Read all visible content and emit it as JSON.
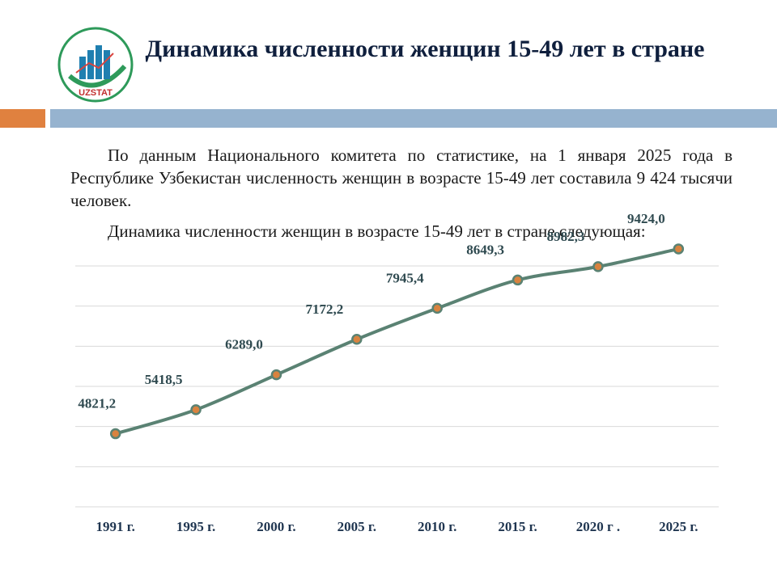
{
  "logo": {
    "text": "UZSTAT"
  },
  "title": "Динамика численности женщин 15-49 лет в стране",
  "paragraphs": [
    "По данным Национального комитета по статистике, на 1 января 2025 года в Республике Узбекистан численность женщин в возрасте 15-49 лет составила 9 424 тысячи человек.",
    "Динамика численности женщин в возрасте 15-49 лет в стране следующая:"
  ],
  "colors": {
    "line": "#5a8273",
    "marker_fill": "#d9833f",
    "grid": "#d9d9d9",
    "accent_orange": "#e0813f",
    "accent_blue": "#96b3cf"
  },
  "chart_data": {
    "type": "line",
    "categories": [
      "1991 г.",
      "1995 г.",
      "2000 г.",
      "2005 г.",
      "2010 г.",
      "2015 г.",
      "2020 г .",
      "2025 г."
    ],
    "values": [
      4821.2,
      5418.5,
      6289.0,
      7172.2,
      7945.4,
      8649.3,
      8982.3,
      9424.0
    ],
    "data_labels": [
      "4821,2",
      "5418,5",
      "6289,0",
      "7172,2",
      "7945,4",
      "8649,3",
      "8982,3",
      "9424,0"
    ],
    "ylim": [
      3000,
      9000
    ],
    "grid": true,
    "legend": "none"
  }
}
